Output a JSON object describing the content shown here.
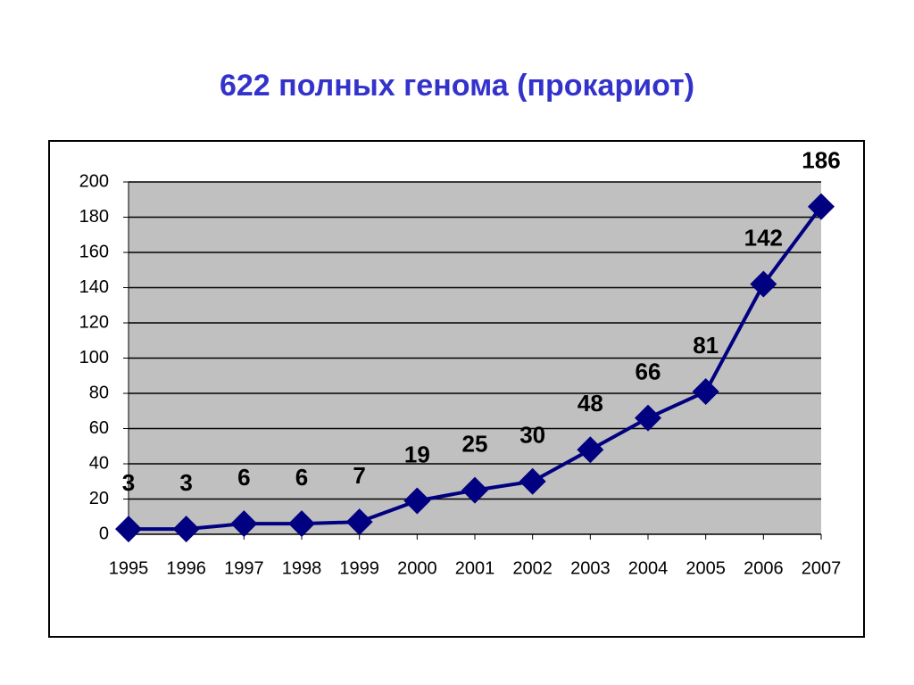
{
  "chart_data": {
    "type": "line",
    "title": "622 полных генома (прокариот)",
    "categories": [
      "1995",
      "1996",
      "1997",
      "1998",
      "1999",
      "2000",
      "2001",
      "2002",
      "2003",
      "2004",
      "2005",
      "2006",
      "2007"
    ],
    "values": [
      3,
      3,
      6,
      6,
      7,
      19,
      25,
      30,
      48,
      66,
      81,
      142,
      186
    ],
    "color": "#000080",
    "ylim": [
      0,
      200
    ],
    "yticks": [
      0,
      20,
      40,
      60,
      80,
      100,
      120,
      140,
      160,
      180,
      200
    ],
    "grid": true
  }
}
